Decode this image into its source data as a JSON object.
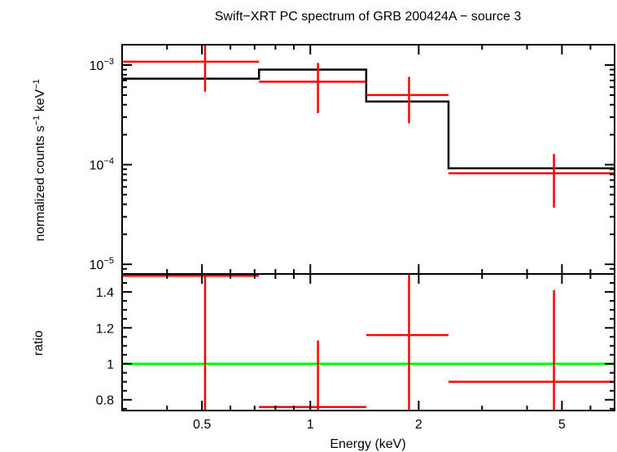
{
  "chart_data": {
    "type": "scatter",
    "title": "Swift−XRT PC spectrum of GRB 200424A − source 3",
    "xlabel": "Energy (keV)",
    "xscale": "log",
    "xlim": [
      0.3,
      7.0
    ],
    "x_ticks": [
      {
        "value": 0.5,
        "label": "0.5"
      },
      {
        "value": 1,
        "label": "1"
      },
      {
        "value": 2,
        "label": "2"
      },
      {
        "value": 5,
        "label": "5"
      }
    ],
    "colors": {
      "data": "#ff0000",
      "model": "#000000",
      "unity": "#00ff00"
    },
    "panels": [
      {
        "name": "spectrum",
        "ylabel_base": "normalized counts s",
        "ylabel_mid": " keV",
        "ylabel_sup": "−1",
        "yscale": "log",
        "ylim": [
          8e-06,
          0.0016
        ],
        "y_ticks": [
          {
            "value": 0.001,
            "base": "10",
            "exp": "−3"
          },
          {
            "value": 0.0001,
            "base": "10",
            "exp": "−4"
          },
          {
            "value": 1e-05,
            "base": "10",
            "exp": "−5"
          }
        ],
        "series": [
          {
            "kind": "data",
            "points": [
              {
                "x": 0.51,
                "xlo": 0.3,
                "xhi": 0.72,
                "y": 0.00108,
                "ylo": 0.00054,
                "yhi": 0.00175
              },
              {
                "x": 1.05,
                "xlo": 0.72,
                "xhi": 1.43,
                "y": 0.00068,
                "ylo": 0.00033,
                "yhi": 0.00105
              },
              {
                "x": 1.88,
                "xlo": 1.43,
                "xhi": 2.42,
                "y": 0.0005,
                "ylo": 0.00026,
                "yhi": 0.00076
              },
              {
                "x": 4.75,
                "xlo": 2.42,
                "xhi": 7.0,
                "y": 8.2e-05,
                "ylo": 3.7e-05,
                "yhi": 0.000128
              }
            ]
          },
          {
            "kind": "model",
            "steps": [
              {
                "xlo": 0.3,
                "xhi": 0.72,
                "y": 0.00073
              },
              {
                "xlo": 0.72,
                "xhi": 1.43,
                "y": 0.0009
              },
              {
                "xlo": 1.43,
                "xhi": 2.42,
                "y": 0.00043
              },
              {
                "xlo": 2.42,
                "xhi": 7.0,
                "y": 9.2e-05
              }
            ]
          }
        ]
      },
      {
        "name": "ratio",
        "ylabel": "ratio",
        "yscale": "linear",
        "ylim": [
          0.74,
          1.5
        ],
        "y_ticks": [
          {
            "value": 0.8,
            "label": "0.8"
          },
          {
            "value": 1,
            "label": "1"
          },
          {
            "value": 1.2,
            "label": "1.2"
          },
          {
            "value": 1.4,
            "label": "1.4"
          }
        ],
        "reference_line": 1,
        "points": [
          {
            "x": 0.51,
            "xlo": 0.3,
            "xhi": 0.72,
            "y": 1.49,
            "ylo": 0.74,
            "yhi": 1.5
          },
          {
            "x": 1.05,
            "xlo": 0.72,
            "xhi": 1.43,
            "y": 0.76,
            "ylo": 0.74,
            "yhi": 1.13
          },
          {
            "x": 1.88,
            "xlo": 1.43,
            "xhi": 2.42,
            "y": 1.16,
            "ylo": 0.74,
            "yhi": 1.5
          },
          {
            "x": 4.75,
            "xlo": 2.42,
            "xhi": 7.0,
            "y": 0.9,
            "ylo": 0.74,
            "yhi": 1.41
          }
        ]
      }
    ]
  }
}
